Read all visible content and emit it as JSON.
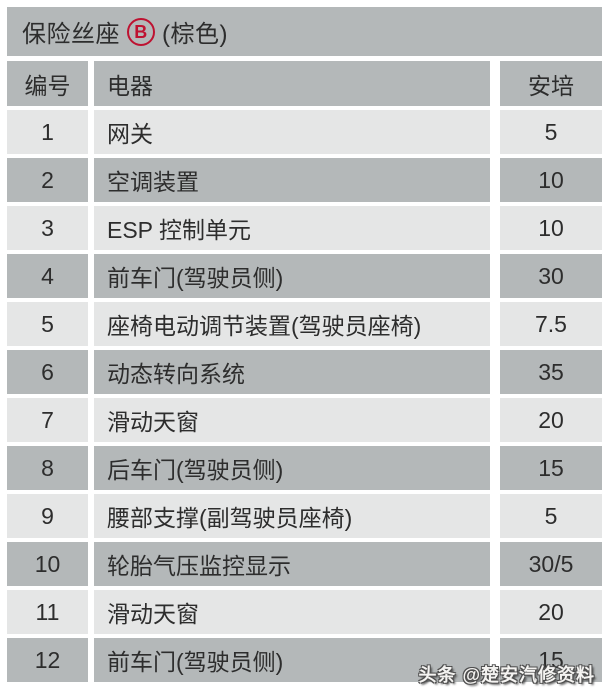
{
  "title": {
    "prefix": "保险丝座",
    "fuse_box_letter": "B",
    "suffix": "(棕色)"
  },
  "table": {
    "headers": {
      "number": "编号",
      "device": "电器",
      "amps": "安培"
    },
    "rows": [
      {
        "no": "1",
        "device": "网关",
        "amp": "5"
      },
      {
        "no": "2",
        "device": "空调装置",
        "amp": "10"
      },
      {
        "no": "3",
        "device": "ESP 控制单元",
        "amp": "10"
      },
      {
        "no": "4",
        "device": "前车门(驾驶员侧)",
        "amp": "30"
      },
      {
        "no": "5",
        "device": "座椅电动调节装置(驾驶员座椅)",
        "amp": "7.5"
      },
      {
        "no": "6",
        "device": "动态转向系统",
        "amp": "35"
      },
      {
        "no": "7",
        "device": "滑动天窗",
        "amp": "20"
      },
      {
        "no": "8",
        "device": "后车门(驾驶员侧)",
        "amp": "15"
      },
      {
        "no": "9",
        "device": "腰部支撑(副驾驶员座椅)",
        "amp": "5"
      },
      {
        "no": "10",
        "device": "轮胎气压监控显示",
        "amp": "30/5"
      },
      {
        "no": "11",
        "device": "滑动天窗",
        "amp": "20"
      },
      {
        "no": "12",
        "device": "前车门(驾驶员侧)",
        "amp": "15"
      }
    ]
  },
  "watermark": "头条 @楚安汽修资料",
  "colors": {
    "row_dark": "#b4b8b9",
    "row_light": "#e5e6e6",
    "accent_red": "#be1231",
    "text": "#2d2d2d"
  }
}
